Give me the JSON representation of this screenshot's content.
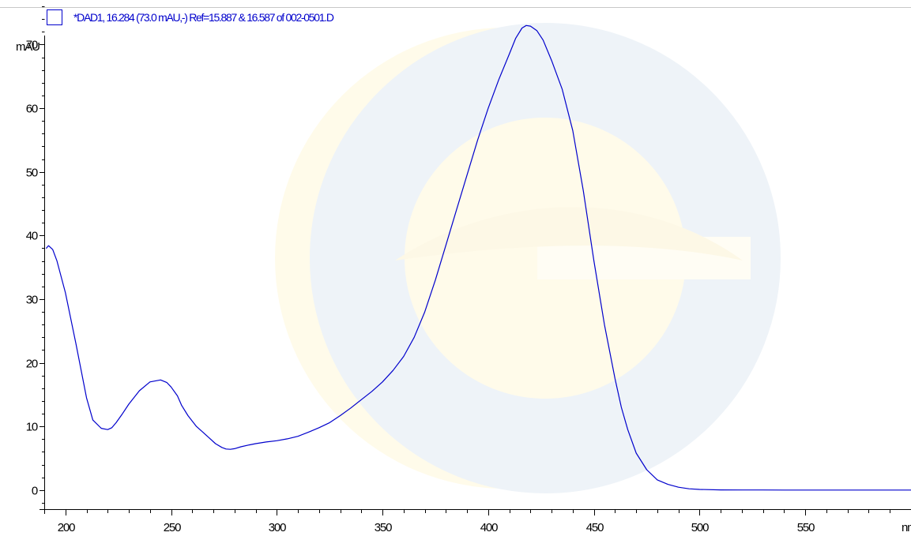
{
  "chart_data": {
    "type": "line",
    "title": "*DAD1, 16.284 (73.0 mAU,-) Ref=15.887 & 16.587 of 002-0501.D",
    "legend": "top-left",
    "xlabel": "nm",
    "ylabel": "mAU",
    "xlim": [
      190,
      600
    ],
    "ylim": [
      -3,
      77
    ],
    "xticks": [
      200,
      250,
      300,
      350,
      400,
      450,
      500,
      550
    ],
    "xtick_labels": [
      "200",
      "250",
      "300",
      "350",
      "400",
      "450",
      "500",
      "550"
    ],
    "yticks": [
      0,
      10,
      20,
      30,
      40,
      50,
      60,
      70
    ],
    "ytick_labels": [
      "0",
      "10",
      "20",
      "30",
      "40",
      "50",
      "60",
      "70"
    ],
    "grid": false,
    "series": [
      {
        "name": "*DAD1, 16.284 (73.0 mAU,-) Ref=15.887 & 16.587 of 002-0501.D",
        "color": "#0000cc",
        "x": [
          191,
          192,
          194,
          196,
          200,
          205,
          210,
          213,
          217,
          220,
          222,
          224,
          227,
          230,
          235,
          240,
          245,
          248,
          250,
          253,
          255,
          258,
          262,
          265,
          268,
          271,
          274,
          276,
          278,
          280,
          283,
          287,
          290,
          295,
          300,
          305,
          310,
          315,
          320,
          325,
          330,
          335,
          340,
          345,
          350,
          355,
          360,
          365,
          370,
          375,
          380,
          385,
          390,
          395,
          400,
          405,
          410,
          413,
          416,
          418,
          420,
          423,
          426,
          430,
          435,
          440,
          445,
          450,
          455,
          460,
          463,
          466,
          470,
          475,
          480,
          485,
          490,
          495,
          500,
          510,
          520,
          530,
          540,
          560,
          580,
          600
        ],
        "y": [
          38,
          38.4,
          37.8,
          36,
          31,
          23,
          14.5,
          11,
          9.7,
          9.5,
          9.8,
          10.6,
          12,
          13.5,
          15.6,
          17,
          17.3,
          16.9,
          16.2,
          14.8,
          13.3,
          11.7,
          10,
          9.1,
          8.2,
          7.3,
          6.7,
          6.45,
          6.4,
          6.5,
          6.8,
          7.1,
          7.3,
          7.55,
          7.75,
          8.05,
          8.45,
          9.1,
          9.8,
          10.6,
          11.7,
          12.9,
          14.2,
          15.5,
          17,
          18.8,
          21,
          24,
          28,
          33,
          38.5,
          44,
          49.5,
          55,
          60,
          64.5,
          68.5,
          71,
          72.6,
          73,
          72.9,
          72.2,
          70.7,
          67.5,
          63,
          56.5,
          47,
          36,
          26,
          17.5,
          13,
          9.5,
          5.8,
          3.2,
          1.6,
          0.9,
          0.45,
          0.2,
          0.1,
          0.03,
          0.02,
          0.01,
          0,
          0,
          0,
          0
        ]
      }
    ]
  }
}
